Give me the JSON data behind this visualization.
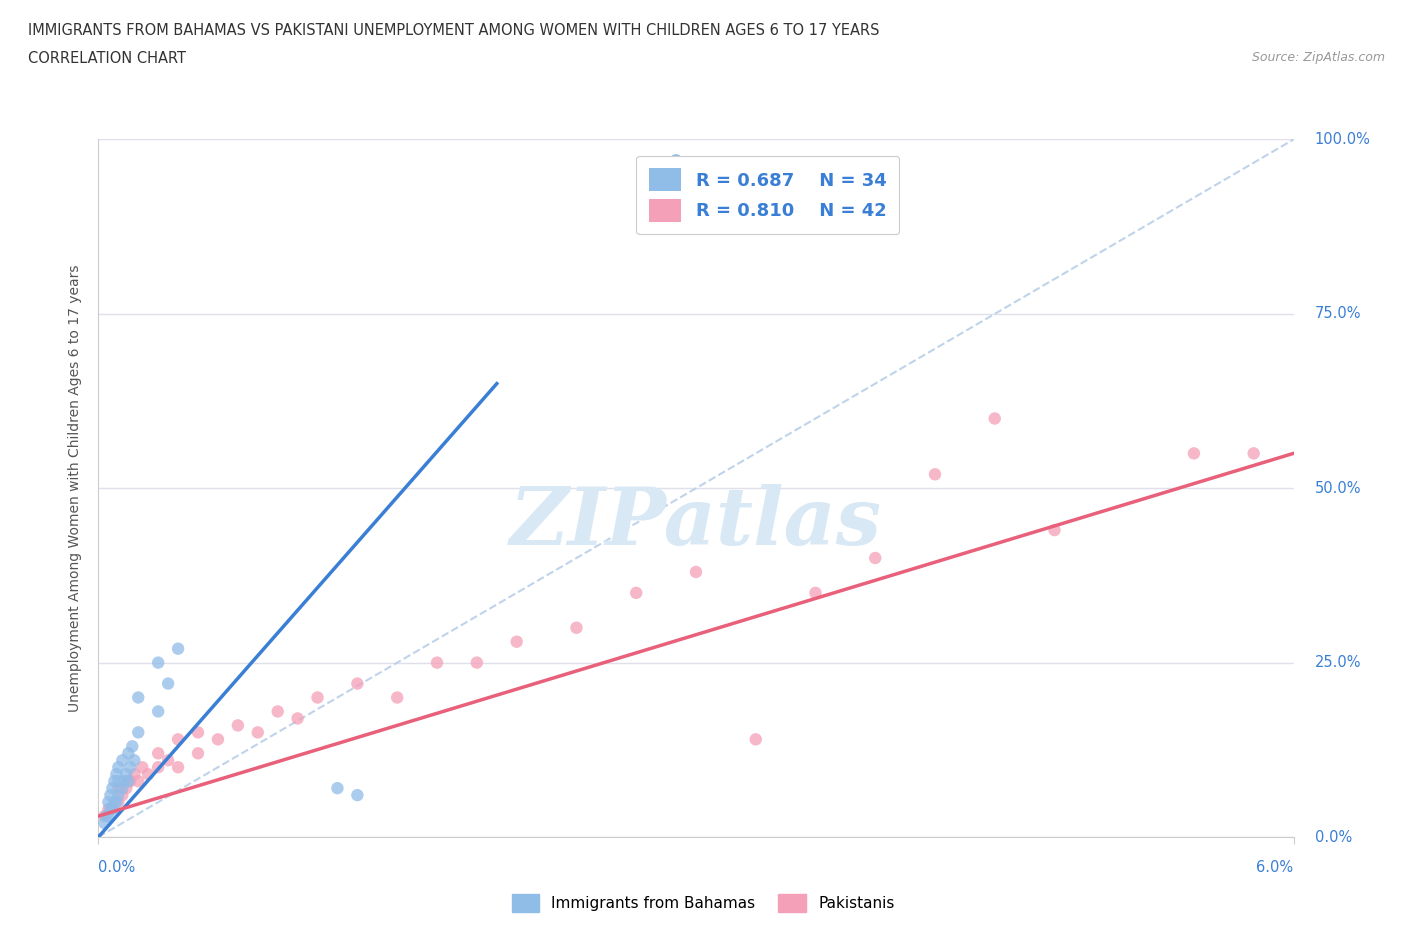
{
  "title_line1": "IMMIGRANTS FROM BAHAMAS VS PAKISTANI UNEMPLOYMENT AMONG WOMEN WITH CHILDREN AGES 6 TO 17 YEARS",
  "title_line2": "CORRELATION CHART",
  "source_text": "Source: ZipAtlas.com",
  "ylabel": "Unemployment Among Women with Children Ages 6 to 17 years",
  "xmin": 0.0,
  "xmax": 0.06,
  "ymin": 0.0,
  "ymax": 1.0,
  "yticks": [
    0.0,
    0.25,
    0.5,
    0.75,
    1.0
  ],
  "ytick_labels": [
    "0.0%",
    "25.0%",
    "50.0%",
    "75.0%",
    "100.0%"
  ],
  "color_bahamas": "#90bce8",
  "color_pakistan": "#f4a0b8",
  "color_bahamas_line": "#3a7fd5",
  "color_pakistan_line": "#e8607a",
  "color_diagonal": "#b8cfe8",
  "bahamas_regression": [
    0.0,
    0.0,
    0.02,
    0.65
  ],
  "pakistan_regression": [
    0.0,
    0.03,
    0.06,
    0.55
  ],
  "scatter_bahamas_x": [
    0.0003,
    0.0004,
    0.0005,
    0.0005,
    0.0006,
    0.0006,
    0.0007,
    0.0007,
    0.0008,
    0.0008,
    0.0009,
    0.0009,
    0.001,
    0.001,
    0.001,
    0.0012,
    0.0012,
    0.0013,
    0.0014,
    0.0015,
    0.0015,
    0.0016,
    0.0017,
    0.0018,
    0.002,
    0.002,
    0.003,
    0.003,
    0.0035,
    0.004,
    0.012,
    0.013,
    0.029,
    0.029
  ],
  "scatter_bahamas_y": [
    0.02,
    0.03,
    0.03,
    0.05,
    0.04,
    0.06,
    0.04,
    0.07,
    0.05,
    0.08,
    0.05,
    0.09,
    0.06,
    0.08,
    0.1,
    0.07,
    0.11,
    0.08,
    0.09,
    0.08,
    0.12,
    0.1,
    0.13,
    0.11,
    0.15,
    0.2,
    0.18,
    0.25,
    0.22,
    0.27,
    0.07,
    0.06,
    0.97,
    0.97
  ],
  "scatter_pakistan_x": [
    0.0003,
    0.0005,
    0.0007,
    0.001,
    0.001,
    0.0012,
    0.0014,
    0.0015,
    0.0016,
    0.0018,
    0.002,
    0.0022,
    0.0025,
    0.003,
    0.003,
    0.0035,
    0.004,
    0.004,
    0.005,
    0.005,
    0.006,
    0.007,
    0.008,
    0.009,
    0.01,
    0.011,
    0.013,
    0.015,
    0.017,
    0.019,
    0.021,
    0.024,
    0.027,
    0.03,
    0.033,
    0.036,
    0.039,
    0.042,
    0.045,
    0.048,
    0.055,
    0.058
  ],
  "scatter_pakistan_y": [
    0.03,
    0.04,
    0.04,
    0.05,
    0.07,
    0.06,
    0.07,
    0.08,
    0.08,
    0.09,
    0.08,
    0.1,
    0.09,
    0.1,
    0.12,
    0.11,
    0.1,
    0.14,
    0.12,
    0.15,
    0.14,
    0.16,
    0.15,
    0.18,
    0.17,
    0.2,
    0.22,
    0.2,
    0.25,
    0.25,
    0.28,
    0.3,
    0.35,
    0.38,
    0.14,
    0.35,
    0.4,
    0.52,
    0.6,
    0.44,
    0.55,
    0.55
  ],
  "background_color": "#ffffff",
  "grid_color": "#e0e0ec",
  "watermark_text": "ZIPatlas",
  "watermark_color": "#d8e8f5",
  "watermark_fontsize": 58
}
